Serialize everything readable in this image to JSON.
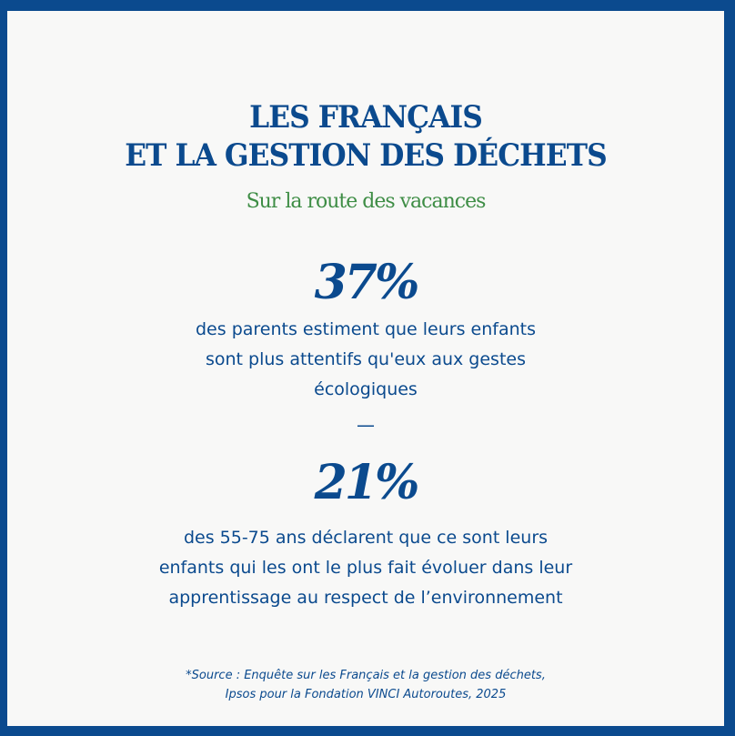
{
  "title_lines": [
    "LES FRANÇAIS",
    "ET LA GESTION DES DÉCHETS"
  ],
  "subtitle": "Sur la route des vacances",
  "stats": [
    {
      "value": "37%",
      "lines": [
        "des parents estiment que leurs enfants",
        "sont plus attentifs qu'eux aux gestes",
        "écologiques"
      ]
    },
    {
      "value": "21%",
      "lines": [
        "des 55-75 ans déclarent que ce sont leurs",
        "enfants qui les ont le plus fait évoluer dans leur",
        "apprentissage au respect de l’environnement"
      ]
    }
  ],
  "separator": "—",
  "source_lines": [
    "*Source : Enquête sur les Français et la gestion des déchets,",
    "Ipsos pour la Fondation VINCI Autoroutes, 2025"
  ],
  "colors": {
    "blue": "#0b4a8e",
    "green": "#3e8d45"
  }
}
